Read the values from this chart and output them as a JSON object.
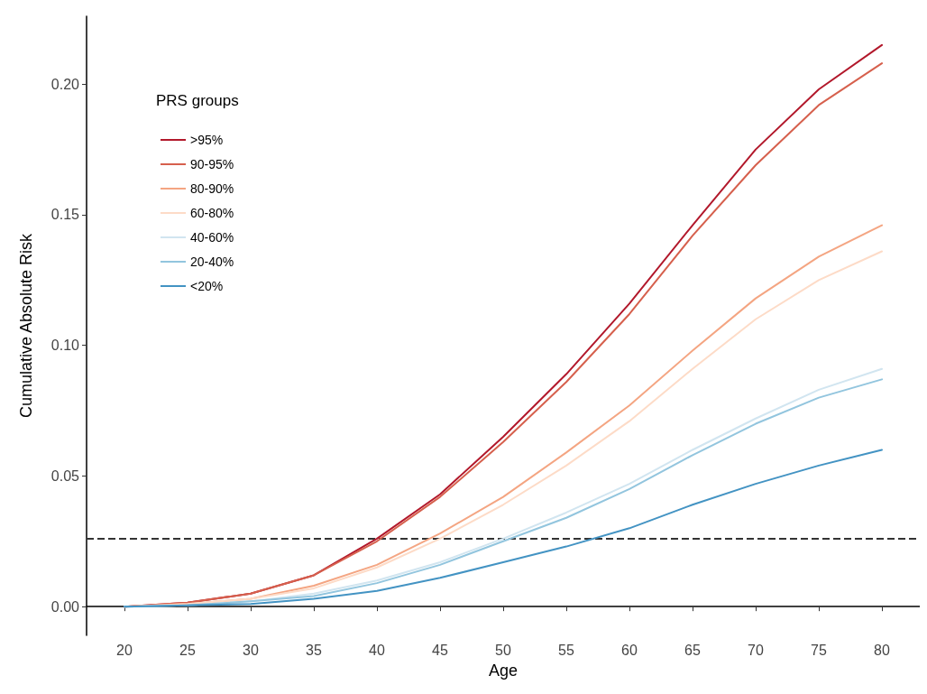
{
  "chart_data": {
    "type": "line",
    "xlabel": "Age",
    "ylabel": "Cumulative Absolute Risk",
    "legend_title": "PRS groups",
    "legend": "top left",
    "grid": false,
    "line_style": "solid",
    "marker": "none",
    "x": [
      20,
      25,
      30,
      35,
      40,
      45,
      50,
      55,
      60,
      65,
      70,
      75,
      80
    ],
    "xlim": [
      17,
      83
    ],
    "xticks": [
      20,
      25,
      30,
      35,
      40,
      45,
      50,
      55,
      60,
      65,
      70,
      75,
      80
    ],
    "ylim": [
      -0.011,
      0.226
    ],
    "yticks": [
      {
        "value": 0,
        "label": "0.00"
      },
      {
        "value": 0.05,
        "label": "0.05"
      },
      {
        "value": 0.1,
        "label": "0.10"
      },
      {
        "value": 0.15,
        "label": "0.15"
      },
      {
        "value": 0.2,
        "label": "0.20"
      }
    ],
    "series": [
      {
        "name": ">95%",
        "color": "#b2182b",
        "values": [
          0,
          0.0015,
          0.005,
          0.012,
          0.026,
          0.043,
          0.065,
          0.089,
          0.116,
          0.146,
          0.175,
          0.198,
          0.215
        ]
      },
      {
        "name": "90-95%",
        "color": "#d6604d",
        "values": [
          0,
          0.0015,
          0.005,
          0.012,
          0.025,
          0.042,
          0.063,
          0.086,
          0.112,
          0.142,
          0.169,
          0.192,
          0.208
        ]
      },
      {
        "name": "80-90%",
        "color": "#f4a582",
        "values": [
          0,
          0.001,
          0.003,
          0.008,
          0.016,
          0.028,
          0.042,
          0.059,
          0.077,
          0.098,
          0.118,
          0.134,
          0.146
        ]
      },
      {
        "name": "60-80%",
        "color": "#fddbc7",
        "values": [
          0,
          0.001,
          0.003,
          0.007,
          0.015,
          0.026,
          0.039,
          0.054,
          0.071,
          0.091,
          0.11,
          0.125,
          0.136
        ]
      },
      {
        "name": "40-60%",
        "color": "#d1e5f0",
        "values": [
          0,
          0.0005,
          0.002,
          0.005,
          0.01,
          0.017,
          0.026,
          0.036,
          0.047,
          0.06,
          0.072,
          0.083,
          0.091
        ]
      },
      {
        "name": "20-40%",
        "color": "#92c5de",
        "values": [
          0,
          0.0005,
          0.002,
          0.004,
          0.009,
          0.016,
          0.025,
          0.034,
          0.045,
          0.058,
          0.07,
          0.08,
          0.087
        ]
      },
      {
        "name": "<20%",
        "color": "#4393c3",
        "values": [
          0,
          0.0005,
          0.001,
          0.003,
          0.006,
          0.011,
          0.017,
          0.023,
          0.03,
          0.039,
          0.047,
          0.054,
          0.06
        ]
      }
    ],
    "ref_lines": [
      {
        "axis": "y",
        "value": 0.026,
        "color": "#333333",
        "line_style": "dashed"
      }
    ]
  }
}
